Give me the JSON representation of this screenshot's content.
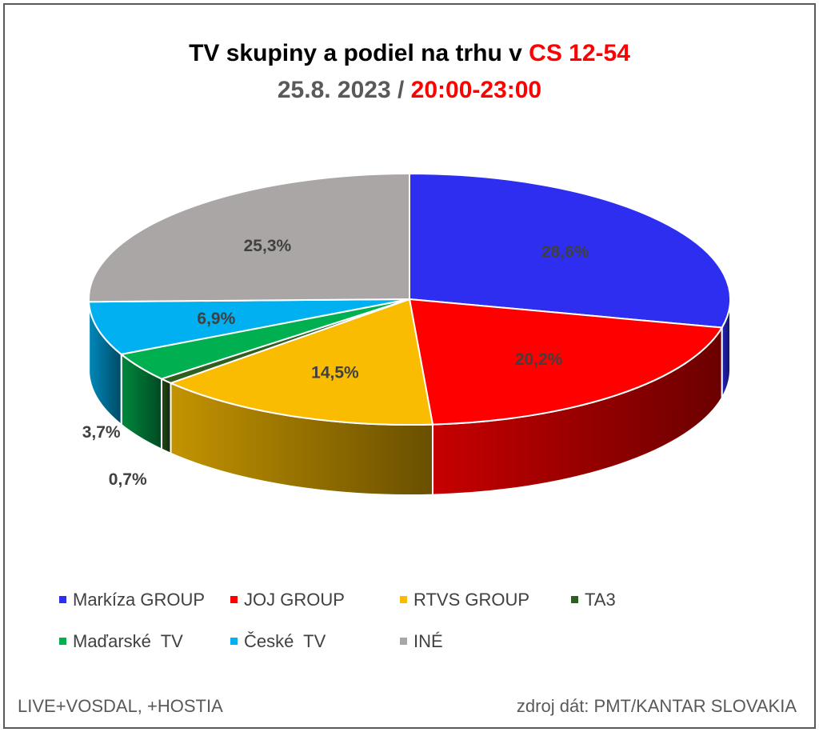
{
  "title": {
    "line1_black": "TV skupiny a podiel na trhu v",
    "line1_red": "CS 12-54",
    "line2_gray": "25.8. 2023 /",
    "line2_red": "20:00-23:00"
  },
  "chart_data": {
    "type": "pie",
    "title": "TV skupiny a podiel na trhu v CS 12-54 25.8. 2023 / 20:00-23:00",
    "slices": [
      {
        "name": "Markíza GROUP",
        "value": 28.6,
        "label": "28,6%",
        "color": "#2e2ef0"
      },
      {
        "name": "JOJ GROUP",
        "value": 20.2,
        "label": "20,2%",
        "color": "#ff0000"
      },
      {
        "name": "RTVS GROUP",
        "value": 14.5,
        "label": "14,5%",
        "color": "#fabc00"
      },
      {
        "name": "TA3",
        "value": 0.7,
        "label": "0,7%",
        "color": "#2e5f1e"
      },
      {
        "name": "Maďarské  TV",
        "value": 3.7,
        "label": "3,7%",
        "color": "#00b050"
      },
      {
        "name": "České  TV",
        "value": 6.9,
        "label": "6,9%",
        "color": "#00b0f0"
      },
      {
        "name": "INÉ",
        "value": 25.3,
        "label": "25,3%",
        "color": "#aaa6a6"
      }
    ],
    "legend_position": "bottom"
  },
  "footer": {
    "left": "LIVE+VOSDAL, +HOSTIA",
    "right": "zdroj dát: PMT/KANTAR SLOVAKIA"
  }
}
